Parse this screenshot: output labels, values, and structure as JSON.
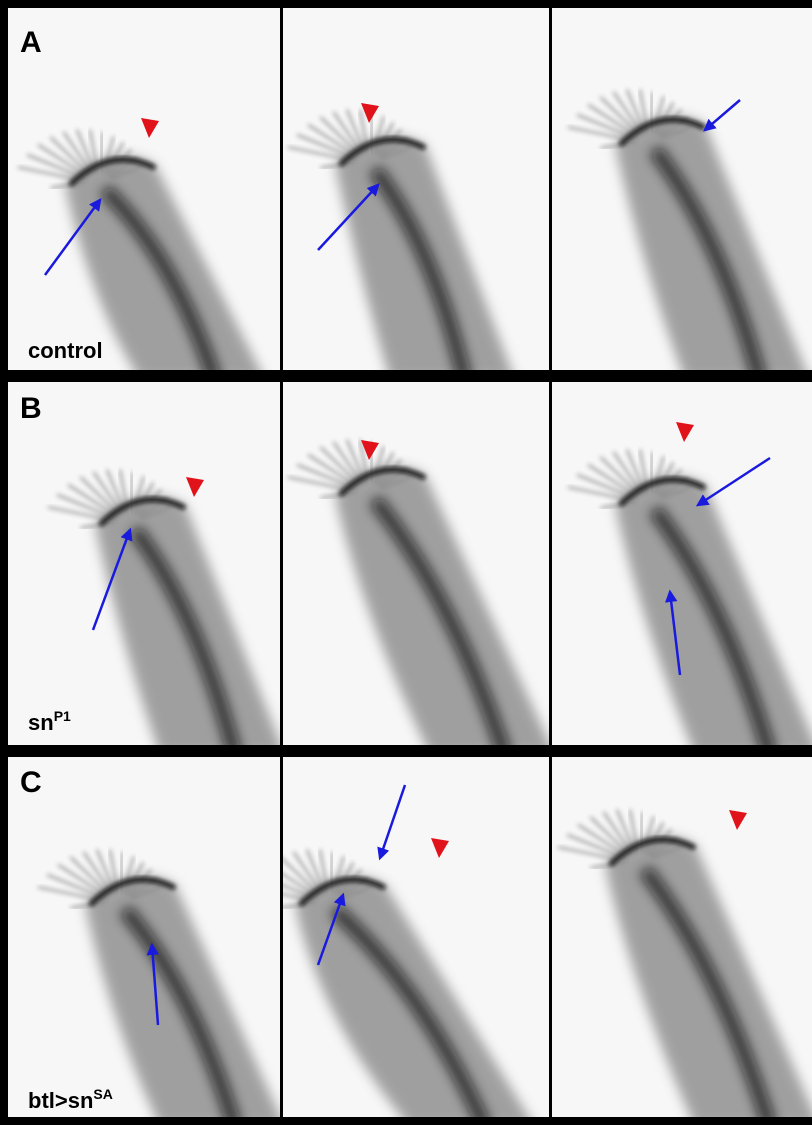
{
  "rows": [
    {
      "label": "A",
      "condition": {
        "base": "control"
      }
    },
    {
      "label": "B",
      "condition": {
        "base": "sn",
        "sup": "P1"
      }
    },
    {
      "label": "C",
      "condition": {
        "base": "btl>sn",
        "sup": "SA"
      }
    }
  ]
}
